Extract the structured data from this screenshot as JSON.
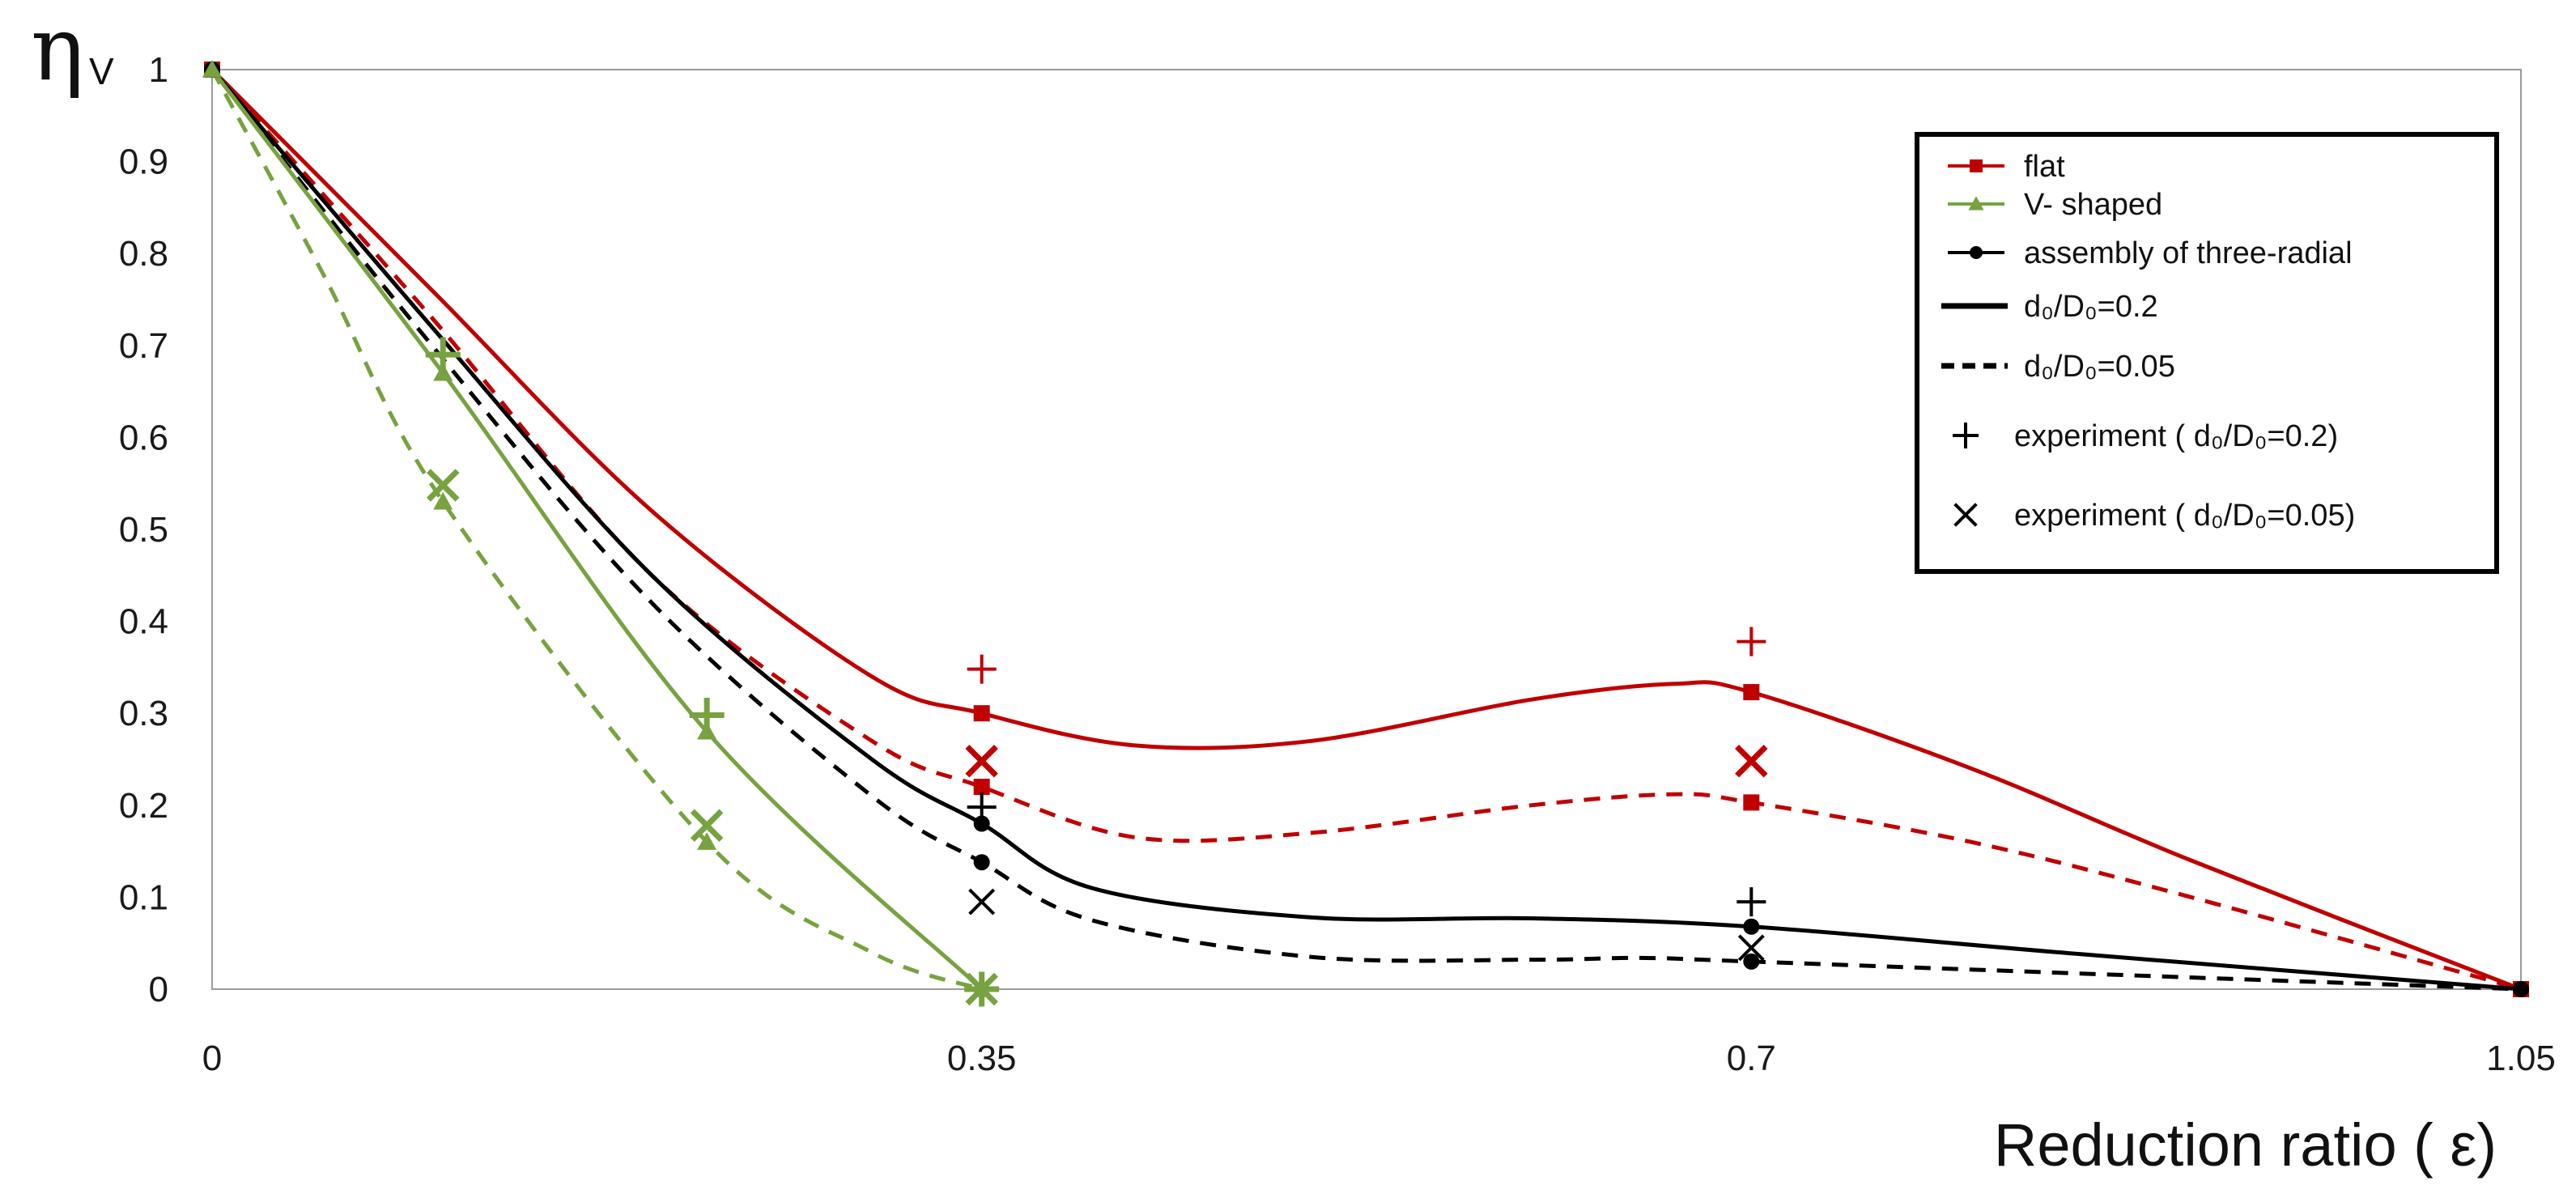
{
  "chart_data": {
    "type": "line",
    "ylabel": {
      "symbol": "η",
      "subscript": "V"
    },
    "xlabel": "Reduction ratio ( ε)",
    "xlim": [
      0,
      1.05
    ],
    "ylim": [
      0,
      1
    ],
    "x_ticks": [
      "0",
      "0.35",
      "0.7",
      "1.05"
    ],
    "y_ticks": [
      "0",
      "0.1",
      "0.2",
      "0.3",
      "0.4",
      "0.5",
      "0.6",
      "0.7",
      "0.8",
      "0.9",
      "1"
    ],
    "grid": false,
    "legend_position": "top-right",
    "colors": {
      "flat": "#c00000",
      "v_shaped": "#77a240",
      "three_radial": "#000000"
    },
    "legend": [
      {
        "label": "flat",
        "kind": "series",
        "marker": "square",
        "color": "#c00000"
      },
      {
        "label": "V- shaped",
        "kind": "series",
        "marker": "triangle",
        "color": "#77a240"
      },
      {
        "label": "assembly of three-radial",
        "kind": "series",
        "marker": "circle",
        "color": "#000000"
      },
      {
        "label": "d₀/D₀=0.2",
        "kind": "line",
        "dash": "solid",
        "color": "#000000"
      },
      {
        "label": "d₀/D₀=0.05",
        "kind": "line",
        "dash": "dashed",
        "color": "#000000"
      },
      {
        "label": "experiment ( d₀/D₀=0.2)",
        "kind": "marker",
        "marker": "plus",
        "color": "#000000"
      },
      {
        "label": "experiment ( d₀/D₀=0.05)",
        "kind": "marker",
        "marker": "cross",
        "color": "#000000"
      }
    ],
    "series": [
      {
        "group": "flat",
        "ratio": "0.2",
        "color": "#c00000",
        "dash": "solid",
        "marker": "square",
        "points": [
          [
            0,
            1
          ],
          [
            0.35,
            0.3
          ],
          [
            0.7,
            0.323
          ],
          [
            1.05,
            0
          ]
        ],
        "curve": [
          [
            0,
            1
          ],
          [
            0.1,
            0.76
          ],
          [
            0.2,
            0.52
          ],
          [
            0.3,
            0.34
          ],
          [
            0.35,
            0.3
          ],
          [
            0.42,
            0.265
          ],
          [
            0.5,
            0.27
          ],
          [
            0.6,
            0.315
          ],
          [
            0.665,
            0.332
          ],
          [
            0.7,
            0.323
          ],
          [
            0.8,
            0.24
          ],
          [
            0.9,
            0.14
          ],
          [
            1.05,
            0
          ]
        ]
      },
      {
        "group": "flat",
        "ratio": "0.05",
        "color": "#c00000",
        "dash": "dashed",
        "marker": "square",
        "points": [
          [
            0,
            1
          ],
          [
            0.35,
            0.22
          ],
          [
            0.7,
            0.203
          ],
          [
            1.05,
            0
          ]
        ],
        "curve": [
          [
            0,
            1
          ],
          [
            0.1,
            0.73
          ],
          [
            0.2,
            0.45
          ],
          [
            0.3,
            0.27
          ],
          [
            0.35,
            0.22
          ],
          [
            0.42,
            0.165
          ],
          [
            0.5,
            0.17
          ],
          [
            0.6,
            0.2
          ],
          [
            0.665,
            0.212
          ],
          [
            0.7,
            0.203
          ],
          [
            0.8,
            0.16
          ],
          [
            0.9,
            0.1
          ],
          [
            1.05,
            0
          ]
        ]
      },
      {
        "group": "three_radial",
        "ratio": "0.2",
        "color": "#000000",
        "dash": "solid",
        "marker": "circle",
        "points": [
          [
            0,
            1
          ],
          [
            0.35,
            0.18
          ],
          [
            0.7,
            0.068
          ],
          [
            1.05,
            0
          ]
        ],
        "curve": [
          [
            0,
            1
          ],
          [
            0.1,
            0.72
          ],
          [
            0.2,
            0.45
          ],
          [
            0.3,
            0.25
          ],
          [
            0.35,
            0.18
          ],
          [
            0.4,
            0.11
          ],
          [
            0.5,
            0.078
          ],
          [
            0.6,
            0.077
          ],
          [
            0.7,
            0.068
          ],
          [
            0.85,
            0.038
          ],
          [
            1.05,
            0
          ]
        ]
      },
      {
        "group": "three_radial",
        "ratio": "0.05",
        "color": "#000000",
        "dash": "dashed",
        "marker": "circle",
        "points": [
          [
            0,
            1
          ],
          [
            0.35,
            0.138
          ],
          [
            0.7,
            0.03
          ],
          [
            1.05,
            0
          ]
        ],
        "curve": [
          [
            0,
            1
          ],
          [
            0.1,
            0.7
          ],
          [
            0.2,
            0.42
          ],
          [
            0.3,
            0.21
          ],
          [
            0.35,
            0.138
          ],
          [
            0.4,
            0.075
          ],
          [
            0.5,
            0.035
          ],
          [
            0.6,
            0.032
          ],
          [
            0.65,
            0.034
          ],
          [
            0.7,
            0.03
          ],
          [
            0.85,
            0.017
          ],
          [
            1.05,
            0
          ]
        ]
      },
      {
        "group": "v_shaped",
        "ratio": "0.2",
        "color": "#77a240",
        "dash": "solid",
        "marker": "triangle",
        "points": [
          [
            0,
            1
          ],
          [
            0.105,
            0.67
          ],
          [
            0.225,
            0.28
          ],
          [
            0.35,
            0
          ]
        ],
        "curve": [
          [
            0,
            1
          ],
          [
            0.105,
            0.67
          ],
          [
            0.225,
            0.28
          ],
          [
            0.35,
            0
          ]
        ]
      },
      {
        "group": "v_shaped",
        "ratio": "0.05",
        "color": "#77a240",
        "dash": "dashed",
        "marker": "triangle",
        "points": [
          [
            0,
            1
          ],
          [
            0.105,
            0.53
          ],
          [
            0.225,
            0.16
          ],
          [
            0.35,
            0
          ]
        ],
        "curve": [
          [
            0,
            1
          ],
          [
            0.05,
            0.78
          ],
          [
            0.105,
            0.53
          ],
          [
            0.225,
            0.16
          ],
          [
            0.3,
            0.04
          ],
          [
            0.35,
            0
          ]
        ]
      }
    ],
    "experiments": [
      {
        "group": "flat",
        "ratio": "0.2",
        "marker": "plus",
        "color": "#c00000",
        "bold": false,
        "x": 0.35,
        "y": 0.348
      },
      {
        "group": "flat",
        "ratio": "0.2",
        "marker": "plus",
        "color": "#c00000",
        "bold": false,
        "x": 0.7,
        "y": 0.378
      },
      {
        "group": "flat",
        "ratio": "0.05",
        "marker": "cross",
        "color": "#c00000",
        "bold": true,
        "x": 0.35,
        "y": 0.248
      },
      {
        "group": "flat",
        "ratio": "0.05",
        "marker": "cross",
        "color": "#c00000",
        "bold": true,
        "x": 0.7,
        "y": 0.248
      },
      {
        "group": "three_radial",
        "ratio": "0.2",
        "marker": "plus",
        "color": "#000000",
        "bold": false,
        "x": 0.35,
        "y": 0.198
      },
      {
        "group": "three_radial",
        "ratio": "0.2",
        "marker": "plus",
        "color": "#000000",
        "bold": false,
        "x": 0.7,
        "y": 0.095
      },
      {
        "group": "three_radial",
        "ratio": "0.05",
        "marker": "cross",
        "color": "#000000",
        "bold": false,
        "x": 0.35,
        "y": 0.095
      },
      {
        "group": "three_radial",
        "ratio": "0.05",
        "marker": "cross",
        "color": "#000000",
        "bold": false,
        "x": 0.7,
        "y": 0.045
      },
      {
        "group": "v_shaped",
        "ratio": "0.2",
        "marker": "plus",
        "color": "#77a240",
        "bold": true,
        "x": 0.105,
        "y": 0.69
      },
      {
        "group": "v_shaped",
        "ratio": "0.2",
        "marker": "plus",
        "color": "#77a240",
        "bold": true,
        "x": 0.225,
        "y": 0.298
      },
      {
        "group": "v_shaped",
        "ratio": "0.2",
        "marker": "plus",
        "color": "#77a240",
        "bold": true,
        "x": 0.35,
        "y": 0
      },
      {
        "group": "v_shaped",
        "ratio": "0.05",
        "marker": "cross",
        "color": "#77a240",
        "bold": true,
        "x": 0.105,
        "y": 0.548
      },
      {
        "group": "v_shaped",
        "ratio": "0.05",
        "marker": "cross",
        "color": "#77a240",
        "bold": true,
        "x": 0.225,
        "y": 0.178
      },
      {
        "group": "v_shaped",
        "ratio": "0.05",
        "marker": "cross",
        "color": "#77a240",
        "bold": true,
        "x": 0.35,
        "y": 0
      }
    ]
  }
}
